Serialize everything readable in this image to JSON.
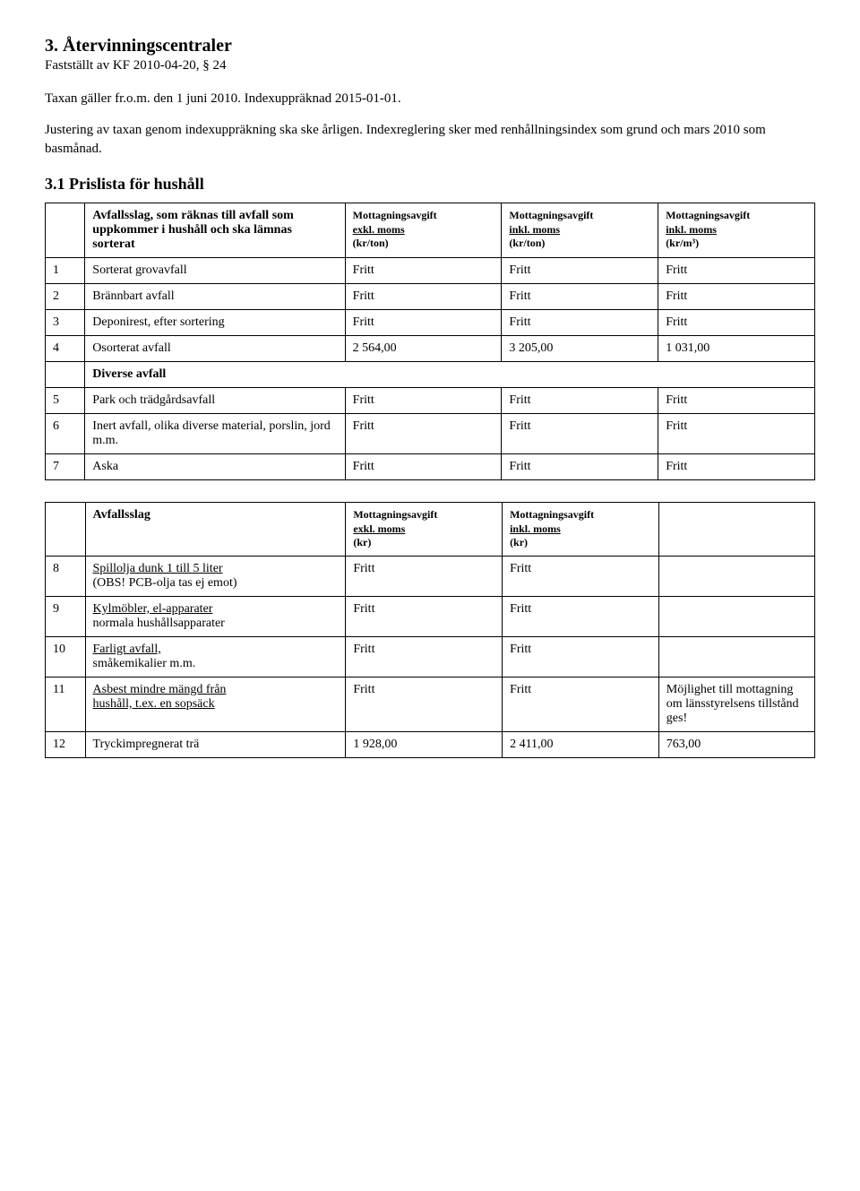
{
  "header": {
    "title": "3.  Återvinningscentraler",
    "sub": "Fastställt av KF 2010-04-20, § 24",
    "para1": "Taxan gäller fr.o.m. den 1 juni 2010. Indexuppräknad 2015-01-01.",
    "para2": "Justering av taxan genom indexuppräkning ska ske årligen. Indexreglering sker med renhållningsindex som grund och mars 2010 som basmånad.",
    "section": "3.1 Prislista för hushåll"
  },
  "table1": {
    "headers": {
      "desc": "Avfallsslag, som räknas till avfall som uppkommer i hushåll och ska lämnas sorterat",
      "c1a": "Mottagningsavgift",
      "c1b": "exkl. moms",
      "c1c": "(kr/ton)",
      "c2a": "Mottagningsavgift",
      "c2b": "inkl. moms",
      "c2c": "(kr/ton)",
      "c3a": "Mottagningsavgift",
      "c3b": "inkl. moms",
      "c3c": "(kr/m³)"
    },
    "rows": [
      {
        "n": "1",
        "desc": "Sorterat grovavfall",
        "v1": "Fritt",
        "v2": "Fritt",
        "v3": "Fritt"
      },
      {
        "n": "2",
        "desc": "Brännbart avfall",
        "v1": "Fritt",
        "v2": "Fritt",
        "v3": "Fritt"
      },
      {
        "n": "3",
        "desc": "Deponirest, efter sortering",
        "v1": "Fritt",
        "v2": "Fritt",
        "v3": "Fritt"
      },
      {
        "n": "4",
        "desc": "Osorterat avfall",
        "v1": "2 564,00",
        "v2": "3 205,00",
        "v3": "1 031,00"
      }
    ],
    "section": "Diverse avfall",
    "rows2": [
      {
        "n": "5",
        "desc": "Park och trädgårdsavfall",
        "v1": "Fritt",
        "v2": "Fritt",
        "v3": "Fritt"
      },
      {
        "n": "6",
        "desc": "Inert avfall, olika diverse material, porslin, jord m.m.",
        "v1": "Fritt",
        "v2": "Fritt",
        "v3": "Fritt"
      },
      {
        "n": "7",
        "desc": "Aska",
        "v1": "Fritt",
        "v2": "Fritt",
        "v3": "Fritt"
      }
    ]
  },
  "table2": {
    "headers": {
      "desc": "Avfallsslag",
      "c1a": "Mottagningsavgift",
      "c1b": "exkl. moms",
      "c1c": "(kr)",
      "c2a": "Mottagningsavgift",
      "c2b": "inkl. moms",
      "c2c": "(kr)"
    },
    "rows": [
      {
        "n": "8",
        "desc_a": "Spillolja dunk 1 till 5 liter",
        "desc_b": "(OBS! PCB-olja tas ej emot)",
        "v1": "Fritt",
        "v2": "Fritt",
        "v3": ""
      },
      {
        "n": "9",
        "desc_a": "Kylmöbler, el-apparater",
        "desc_b": "normala hushållsapparater",
        "v1": "Fritt",
        "v2": "Fritt",
        "v3": ""
      },
      {
        "n": "10",
        "desc_a": "Farligt avfall,",
        "desc_b": "småkemikalier m.m.",
        "v1": "Fritt",
        "v2": "Fritt",
        "v3": ""
      },
      {
        "n": "11",
        "desc_a": "Asbest mindre mängd från",
        "desc_b": "hushåll, t.ex. en sopsäck",
        "v1": "Fritt",
        "v2": "Fritt",
        "v3": "Möjlighet till mottagning om länsstyrelsens tillstånd ges!"
      },
      {
        "n": "12",
        "desc": "Tryckimpregnerat trä",
        "v1": "1 928,00",
        "v2": "2 411,00",
        "v3": "763,00"
      }
    ]
  }
}
